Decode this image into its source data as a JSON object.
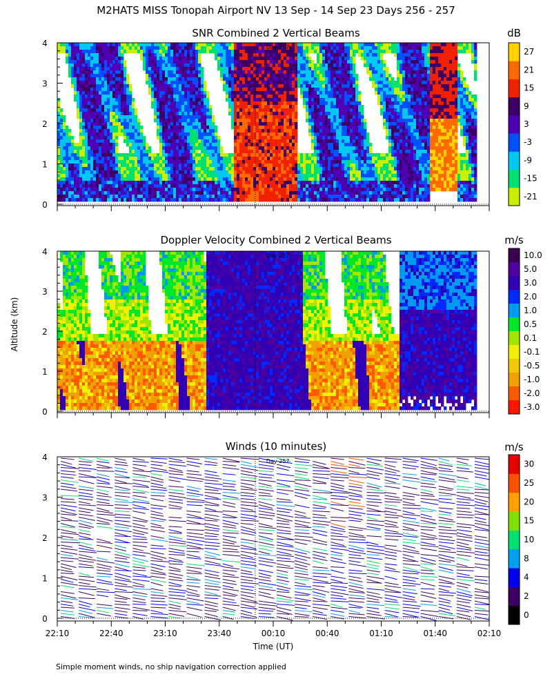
{
  "title": "M2HATS MISS Tonopah Airport NV  13 Sep - 14 Sep 23 Days 256 - 257",
  "ylabel": "Altitude (km)",
  "xlabel": "Time (UT)",
  "footnote": "Simple moment winds, no ship navigation correction applied",
  "x_ticks": [
    "22:10",
    "22:40",
    "23:10",
    "23:40",
    "00:10",
    "00:40",
    "01:10",
    "01:40",
    "02:10"
  ],
  "y_ticks": [
    "0",
    "1",
    "2",
    "3",
    "4"
  ],
  "day_marker": "Day 257",
  "chart_data": [
    {
      "type": "heatmap",
      "title": "SNR Combined 2 Vertical Beams",
      "unit": "dB",
      "x_range": [
        "22:10",
        "02:10"
      ],
      "ylim": [
        0,
        4
      ],
      "colorbar": {
        "labels": [
          "-21",
          "-15",
          "-9",
          "-3",
          "3",
          "9",
          "15",
          "21",
          "27"
        ],
        "colors": [
          "#c8f000",
          "#00e070",
          "#00c8f0",
          "#0050ff",
          "#5000b4",
          "#3c0064",
          "#f02000",
          "#ff6a00",
          "#ffd200"
        ]
      },
      "periods": [
        {
          "from": "22:10",
          "to": "23:45",
          "level": "-3",
          "note": "cellular pattern, mixed -21 to 9"
        },
        {
          "from": "23:45",
          "to": "00:25",
          "level": "15",
          "note": "strong plume 15 to 21"
        },
        {
          "from": "00:25",
          "to": "01:35",
          "level": "-9",
          "note": "cellular pattern, mixed -21 to 9"
        },
        {
          "from": "01:35",
          "to": "01:50",
          "level": "21",
          "note": "strong plume"
        },
        {
          "from": "01:50",
          "to": "02:00",
          "level": "3",
          "note": "low SNR"
        }
      ]
    },
    {
      "type": "heatmap",
      "title": "Doppler Velocity Combined 2 Vertical Beams",
      "unit": "m/s",
      "x_range": [
        "22:10",
        "02:10"
      ],
      "ylim": [
        0,
        4
      ],
      "colorbar": {
        "labels": [
          "10.0",
          "5.0",
          "3.0",
          "2.0",
          "1.0",
          "0.5",
          "0.1",
          "-0.1",
          "-0.5",
          "-1.0",
          "-2.0",
          "-3.0"
        ],
        "colors": [
          "#3c0050",
          "#50009b",
          "#3200b4",
          "#0028ff",
          "#009bf0",
          "#00e628",
          "#a0e600",
          "#f0f000",
          "#f0c800",
          "#f0a000",
          "#ff5a00",
          "#ff1400"
        ]
      },
      "periods": [
        {
          "from": "22:10",
          "to": "23:30",
          "level": "-1.0",
          "note": "mostly downward -0.5 to -2.0 below 2 km"
        },
        {
          "from": "23:30",
          "to": "00:25",
          "level": "5.0",
          "note": "upward 3.0 to 5.0"
        },
        {
          "from": "00:25",
          "to": "01:15",
          "level": "-1.0",
          "note": "mixed downward"
        },
        {
          "from": "01:15",
          "to": "02:00",
          "level": "5.0",
          "note": "upward 3.0 to 5.0"
        }
      ]
    },
    {
      "type": "wind_barbs",
      "title": "Winds (10 minutes)",
      "unit": "m/s",
      "x_range": [
        "22:10",
        "02:10"
      ],
      "ylim": [
        0,
        4
      ],
      "colorbar": {
        "labels": [
          "0",
          "2",
          "4",
          "8",
          "10",
          "15",
          "20",
          "25",
          "30"
        ],
        "colors": [
          "#000000",
          "#3c0064",
          "#0000f0",
          "#00a0f0",
          "#00e070",
          "#80e000",
          "#ffa000",
          "#ff5000",
          "#e60000"
        ]
      },
      "profile_times": [
        "22:10",
        "22:20",
        "22:30",
        "22:40",
        "22:50",
        "23:00",
        "23:10",
        "23:20",
        "23:30",
        "23:40",
        "23:50",
        "00:00",
        "00:10",
        "00:20",
        "00:30",
        "00:40",
        "00:50",
        "01:00",
        "01:10",
        "01:20",
        "01:30",
        "01:40",
        "01:50",
        "02:00"
      ],
      "typical_speed": "2-4 m/s",
      "max_speed": "30 m/s"
    }
  ]
}
